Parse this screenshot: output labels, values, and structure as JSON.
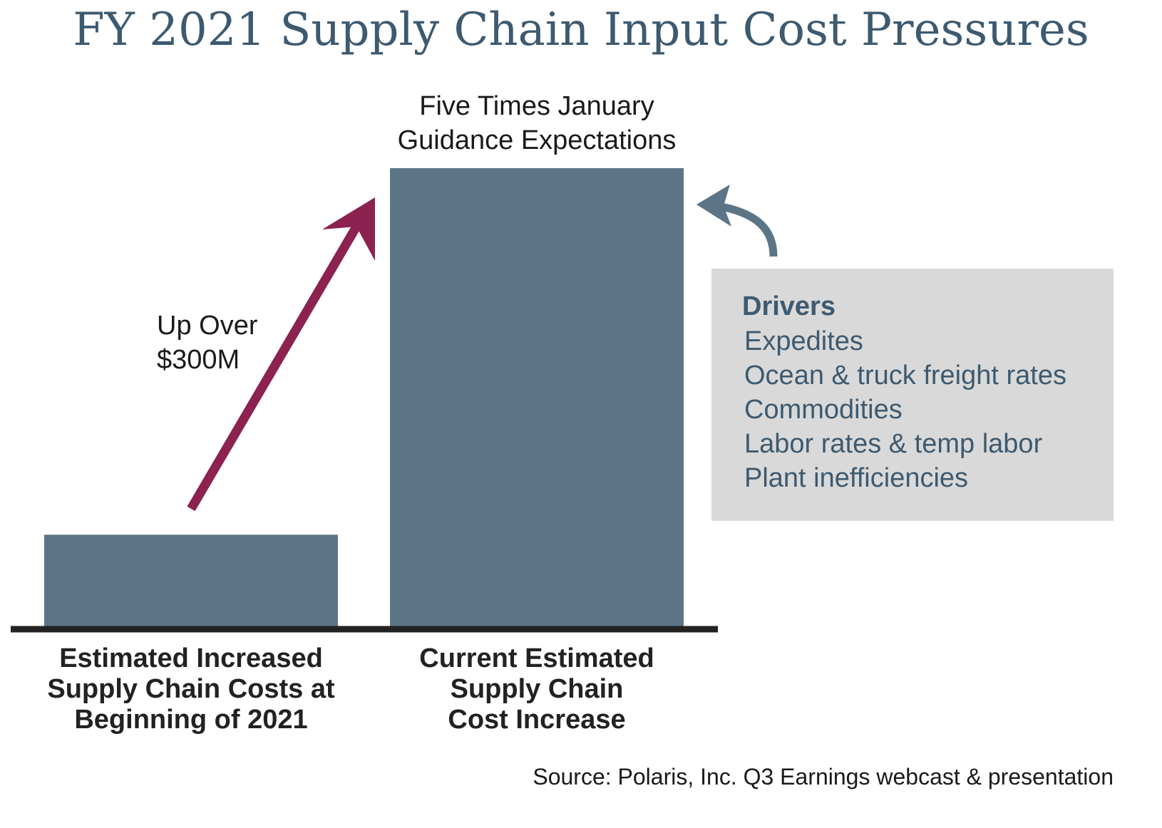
{
  "title": "FY 2021 Supply Chain Input Cost Pressures",
  "chart_data": {
    "type": "bar",
    "categories": [
      "Estimated Increased Supply Chain Costs at Beginning of 2021",
      "Current Estimated Supply Chain Cost Increase"
    ],
    "category_label_lines": [
      [
        "Estimated Increased",
        "Supply Chain Costs at",
        "Beginning of 2021"
      ],
      [
        "Current Estimated",
        "Supply Chain",
        "Cost Increase"
      ]
    ],
    "values": [
      1,
      5
    ],
    "value_unit": "relative to January guidance",
    "ylim": [
      0,
      5
    ],
    "grid": false,
    "title": "FY 2021 Supply Chain Input Cost Pressures",
    "xlabel": "",
    "ylabel": "",
    "bar_color": "#5b7587",
    "arrow_color": "#8b2250",
    "baseline_color": "#222222",
    "annotations": {
      "top_bar": [
        "Five Times January",
        "Guidance Expectations"
      ],
      "increase": [
        "Up Over",
        "$300M"
      ]
    }
  },
  "drivers": {
    "title": "Drivers",
    "items": [
      "Expedites",
      "Ocean & truck freight rates",
      "Commodities",
      "Labor rates & temp labor",
      "Plant inefficiencies"
    ],
    "box_color": "#d9d9d9",
    "text_color": "#3d5a70",
    "arrow_color": "#5b7587"
  },
  "source": "Source: Polaris, Inc. Q3 Earnings webcast & presentation",
  "icons": {
    "increase_arrow": "arrow-up-right-icon",
    "drivers_arrow": "curved-arrow-left-icon"
  }
}
